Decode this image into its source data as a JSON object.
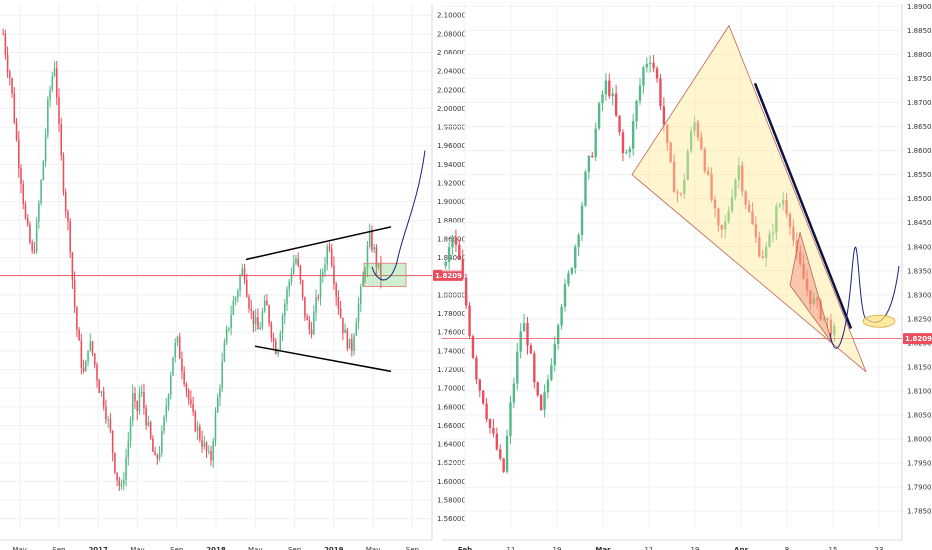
{
  "chart_data": [
    {
      "type": "candlestick",
      "symbol_note": "",
      "y_ticks": [
        "2.10000",
        "2.08000",
        "2.06000",
        "2.04000",
        "2.02000",
        "2.00000",
        "1.98000",
        "1.96000",
        "1.94000",
        "1.92000",
        "1.90000",
        "1.88000",
        "1.86000",
        "1.84000",
        "1.82000",
        "1.80000",
        "1.78000",
        "1.76000",
        "1.74000",
        "1.72000",
        "1.70000",
        "1.68000",
        "1.66000",
        "1.64000",
        "1.62000",
        "1.60000",
        "1.58000",
        "1.56000"
      ],
      "ylim": [
        1.55,
        2.112
      ],
      "x_labels": [
        {
          "label": "May",
          "bold": false
        },
        {
          "label": "Sep",
          "bold": false
        },
        {
          "label": "2017",
          "bold": true
        },
        {
          "label": "May",
          "bold": false
        },
        {
          "label": "Sep",
          "bold": false
        },
        {
          "label": "2018",
          "bold": true
        },
        {
          "label": "May",
          "bold": false
        },
        {
          "label": "Sep",
          "bold": false
        },
        {
          "label": "2019",
          "bold": true
        },
        {
          "label": "May",
          "bold": false
        },
        {
          "label": "Sep",
          "bold": false
        }
      ],
      "current_price": "1.82090",
      "current_value": 1.8209,
      "candle_count": 170,
      "price_path": [
        2.08,
        2.05,
        2.03,
        1.99,
        1.95,
        1.92,
        1.88,
        1.86,
        1.84,
        1.87,
        1.91,
        1.95,
        2.0,
        2.03,
        2.05,
        1.98,
        1.93,
        1.89,
        1.86,
        1.8,
        1.76,
        1.73,
        1.71,
        1.75,
        1.74,
        1.72,
        1.7,
        1.69,
        1.67,
        1.65,
        1.62,
        1.6,
        1.59,
        1.62,
        1.65,
        1.69,
        1.67,
        1.7,
        1.68,
        1.66,
        1.64,
        1.62,
        1.63,
        1.65,
        1.68,
        1.71,
        1.74,
        1.75,
        1.73,
        1.71,
        1.69,
        1.67,
        1.66,
        1.65,
        1.64,
        1.63,
        1.62,
        1.66,
        1.69,
        1.72,
        1.75,
        1.77,
        1.79,
        1.8,
        1.82,
        1.83,
        1.8,
        1.78,
        1.77,
        1.76,
        1.78,
        1.79,
        1.77,
        1.75,
        1.74,
        1.77,
        1.79,
        1.81,
        1.83,
        1.84,
        1.82,
        1.79,
        1.77,
        1.76,
        1.78,
        1.8,
        1.82,
        1.84,
        1.86,
        1.83,
        1.8,
        1.78,
        1.76,
        1.75,
        1.74,
        1.77,
        1.79,
        1.81,
        1.84,
        1.86,
        1.85,
        1.83,
        1.82
      ],
      "annotations": {
        "upper_line_values": [
          1.838,
          1.873
        ],
        "lower_line_values": [
          1.745,
          1.718
        ],
        "box_range": [
          1.809,
          1.834
        ],
        "projection_peak": 1.955
      }
    },
    {
      "type": "candlestick",
      "y_ticks": [
        "1.89000",
        "1.88500",
        "1.88000",
        "1.87500",
        "1.87000",
        "1.86500",
        "1.86000",
        "1.85500",
        "1.85000",
        "1.84500",
        "1.84000",
        "1.83500",
        "1.83000",
        "1.82500",
        "1.82000",
        "1.81500",
        "1.81000",
        "1.80500",
        "1.80000",
        "1.79500",
        "1.79000",
        "1.78500"
      ],
      "ylim": [
        1.7815,
        1.8905
      ],
      "x_labels": [
        {
          "label": "Feb",
          "bold": true
        },
        {
          "label": "11",
          "bold": false
        },
        {
          "label": "19",
          "bold": false
        },
        {
          "label": "Mar",
          "bold": true
        },
        {
          "label": "11",
          "bold": false
        },
        {
          "label": "19",
          "bold": false
        },
        {
          "label": "Apr",
          "bold": true
        },
        {
          "label": "8",
          "bold": false
        },
        {
          "label": "15",
          "bold": false
        },
        {
          "label": "23",
          "bold": false
        }
      ],
      "current_price": "1.82090",
      "current_value": 1.8209,
      "price_path": [
        1.836,
        1.842,
        1.838,
        1.83,
        1.82,
        1.812,
        1.808,
        1.802,
        1.798,
        1.792,
        1.805,
        1.815,
        1.825,
        1.82,
        1.81,
        1.805,
        1.812,
        1.82,
        1.828,
        1.832,
        1.838,
        1.845,
        1.855,
        1.86,
        1.868,
        1.874,
        1.872,
        1.865,
        1.858,
        1.862,
        1.87,
        1.877,
        1.88,
        1.876,
        1.868,
        1.858,
        1.852,
        1.85,
        1.86,
        1.866,
        1.862,
        1.855,
        1.848,
        1.842,
        1.845,
        1.852,
        1.857,
        1.85,
        1.845,
        1.84,
        1.838,
        1.842,
        1.848,
        1.85,
        1.846,
        1.838,
        1.834,
        1.83,
        1.828,
        1.826,
        1.824,
        1.822
      ],
      "annotations": {
        "wedge_top": 1.886,
        "wedge_left": 1.855,
        "wedge_bottom": 1.814,
        "trend_line_values": [
          1.874,
          1.823
        ],
        "ellipse_center": 1.8245
      }
    }
  ]
}
